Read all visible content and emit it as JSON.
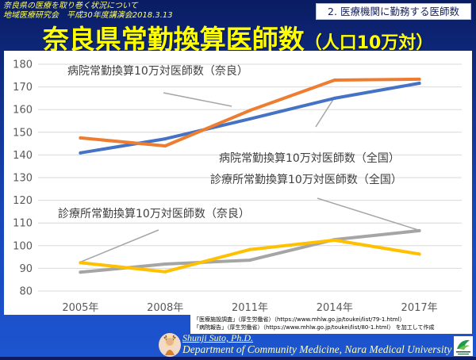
{
  "header": {
    "subtitle_line1": "奈良県の医療を取り巻く状況について",
    "subtitle_line2": "地域医療研究会　平成30年度講演会2018.3.13",
    "section_label": "2. 医療機関に勤務する医師数"
  },
  "title": {
    "main": "奈良県常勤換算医師数",
    "suffix": "（人口10万対）"
  },
  "chart_data": {
    "type": "line",
    "xlabel": "",
    "ylabel": "",
    "categories": [
      "2005年",
      "2008年",
      "2011年",
      "2014年",
      "2017年"
    ],
    "ylim": [
      80,
      180
    ],
    "yticks": [
      80,
      90,
      100,
      110,
      120,
      130,
      140,
      150,
      160,
      170,
      180
    ],
    "grid": true,
    "series": [
      {
        "name": "病院常勤換算10万対医師数（奈良）",
        "color": "#ED7D31",
        "values": [
          147.5,
          144.0,
          159.6,
          173.0,
          173.4
        ]
      },
      {
        "name": "病院常勤換算10万対医師数（全国）",
        "color": "#4472C4",
        "values": [
          140.9,
          147.1,
          155.9,
          165.0,
          171.6
        ]
      },
      {
        "name": "診療所常勤換算10万対医師数（全国）",
        "color": "#A5A5A5",
        "values": [
          88.3,
          91.9,
          93.6,
          102.7,
          106.6
        ]
      },
      {
        "name": "診療所常勤換算10万対医師数（奈良）",
        "color": "#FFC000",
        "values": [
          92.5,
          88.5,
          98.3,
          102.4,
          96.3
        ]
      }
    ]
  },
  "source": {
    "line1": "「医療施設調査」（厚生労働省）（https://www.mhlw.go.jp/toukei/list/79-1.html）",
    "line2": "「病院報告」（厚生労働省）（https://www.mhlw.go.jp/toukei/list/80-1.html） を加工して作成"
  },
  "footer": {
    "author": "Shunji Suto, Ph.D.",
    "affiliation": "Department of Community Medicine, Nara Medical University"
  },
  "icons": {
    "left_logo": "emblem-logo-icon",
    "right_logo": "university-logo-icon"
  }
}
